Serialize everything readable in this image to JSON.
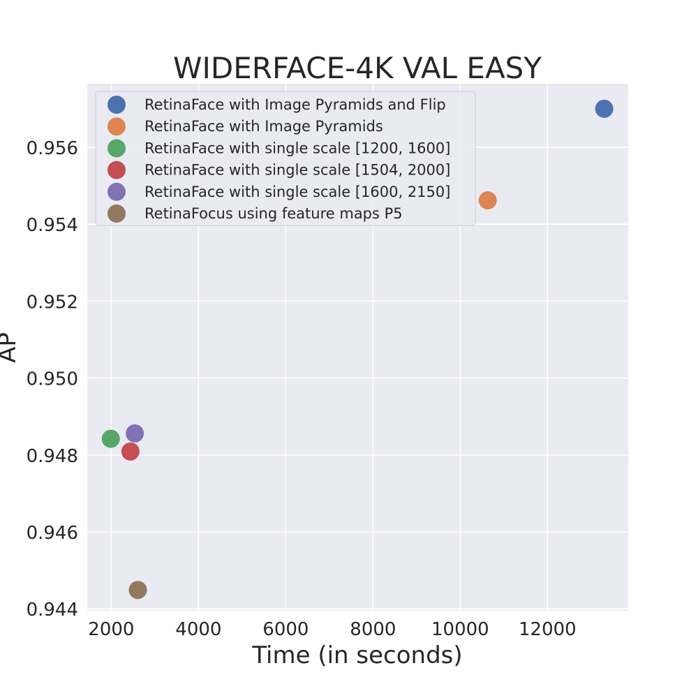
{
  "chart_data": {
    "type": "scatter",
    "title": "WIDERFACE-4K VAL EASY",
    "xlabel": "Time (in seconds)",
    "ylabel": "AP",
    "xlim": [
      1450,
      13850
    ],
    "ylim": [
      0.94395,
      0.95765
    ],
    "xticks": [
      2000,
      4000,
      6000,
      8000,
      10000,
      12000
    ],
    "xtick_labels": [
      "2000",
      "4000",
      "6000",
      "8000",
      "10000",
      "12000"
    ],
    "yticks": [
      0.944,
      0.946,
      0.948,
      0.95,
      0.952,
      0.954,
      0.956
    ],
    "ytick_labels": [
      "0.944",
      "0.946",
      "0.948",
      "0.950",
      "0.952",
      "0.954",
      "0.956"
    ],
    "grid": true,
    "legend_position": "top-left",
    "series": [
      {
        "name": "RetinaFace with Image Pyramids and Flip",
        "color": "#4c72b0",
        "x": [
          13300
        ],
        "y": [
          0.957
        ]
      },
      {
        "name": "RetinaFace with Image Pyramids",
        "color": "#dd8452",
        "x": [
          10630
        ],
        "y": [
          0.95462
        ]
      },
      {
        "name": "RetinaFace with single scale [1200, 1600]",
        "color": "#55a868",
        "x": [
          1990
        ],
        "y": [
          0.94842
        ]
      },
      {
        "name": "RetinaFace with single scale [1504, 2000]",
        "color": "#c44e52",
        "x": [
          2440
        ],
        "y": [
          0.94809
        ]
      },
      {
        "name": "RetinaFace with single scale [1600, 2150]",
        "color": "#8172b3",
        "x": [
          2540
        ],
        "y": [
          0.94856
        ]
      },
      {
        "name": "RetinaFocus using feature maps P5",
        "color": "#937860",
        "x": [
          2610
        ],
        "y": [
          0.94449
        ]
      }
    ]
  },
  "style": {
    "plot_background": "#eaeaf2",
    "grid_color": "#ffffff",
    "text_color": "#262626"
  }
}
